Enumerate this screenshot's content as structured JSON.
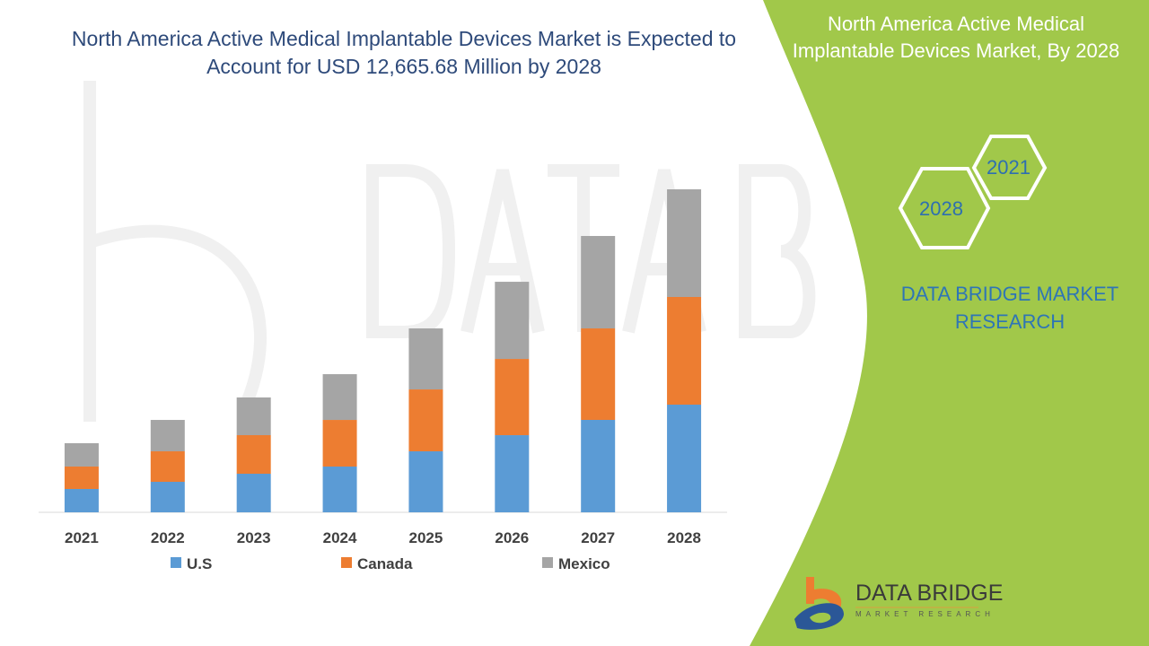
{
  "title": "North America Active Medical Implantable Devices Market is Expected to Account for USD 12,665.68 Million by 2028",
  "side_panel": {
    "title": "North America Active Medical Implantable Devices Market, By 2028",
    "hex_years": [
      "2021",
      "2028"
    ],
    "brand": "DATA BRIDGE MARKET RESEARCH",
    "logo_text": "DATA BRIDGE",
    "logo_subtext": "MARKET RESEARCH",
    "watermark": "DATA BRIDGE",
    "colors": {
      "panel": "#a1c84a",
      "brand_text": "#2e75b6"
    }
  },
  "chart_data": {
    "type": "bar",
    "stacked": true,
    "title": "",
    "xlabel": "",
    "ylabel": "",
    "categories": [
      "2021",
      "2022",
      "2023",
      "2024",
      "2025",
      "2026",
      "2027",
      "2028"
    ],
    "series": [
      {
        "name": "U.S",
        "color": "#5b9bd5",
        "values": [
          915,
          1196,
          1513,
          1794,
          2392,
          3025,
          3624,
          4222
        ]
      },
      {
        "name": "Canada",
        "color": "#ed7d31",
        "values": [
          880,
          1196,
          1513,
          1829,
          2427,
          2990,
          3588,
          4222
        ]
      },
      {
        "name": "Mexico",
        "color": "#a5a5a5",
        "values": [
          915,
          1231,
          1478,
          1794,
          2392,
          3025,
          3624,
          4222
        ]
      }
    ],
    "y_axis_visible": false,
    "grid": false,
    "legend_position": "bottom"
  }
}
